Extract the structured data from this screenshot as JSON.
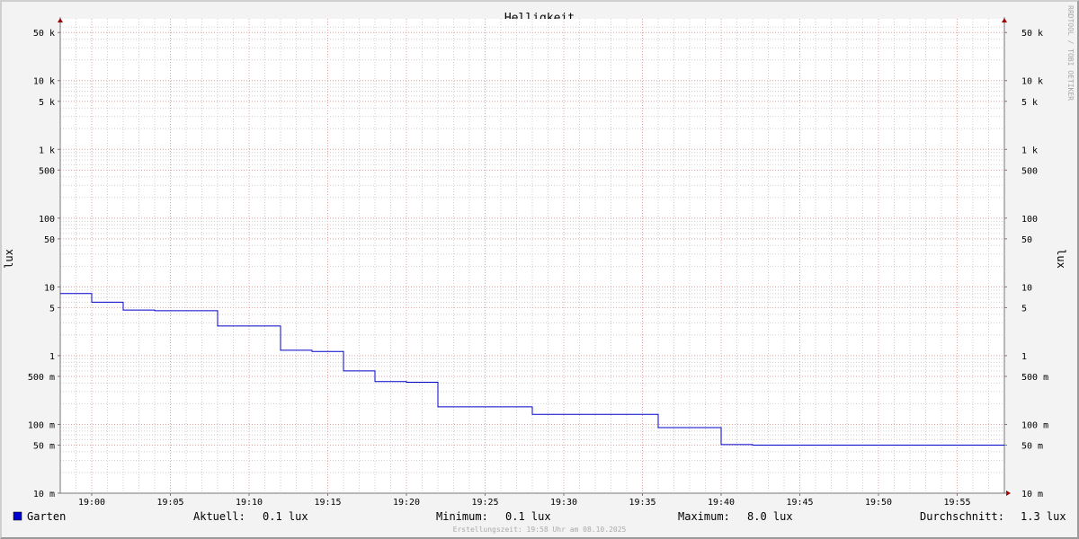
{
  "chart_data": {
    "type": "line",
    "title": "Helligkeit",
    "ylabel": "lux",
    "y_scale": "log",
    "ylim": [
      0.01,
      66000
    ],
    "xlim": [
      "18:58",
      "19:58"
    ],
    "grid": true,
    "x_ticks": [
      "19:00",
      "19:05",
      "19:10",
      "19:15",
      "19:20",
      "19:25",
      "19:30",
      "19:35",
      "19:40",
      "19:45",
      "19:50",
      "19:55"
    ],
    "y_ticks": [
      {
        "value": 0.01,
        "label": "10 m"
      },
      {
        "value": 0.05,
        "label": "50 m"
      },
      {
        "value": 0.1,
        "label": "100 m"
      },
      {
        "value": 0.5,
        "label": "500 m"
      },
      {
        "value": 1,
        "label": "1"
      },
      {
        "value": 5,
        "label": "5"
      },
      {
        "value": 10,
        "label": "10"
      },
      {
        "value": 50,
        "label": "50"
      },
      {
        "value": 100,
        "label": "100"
      },
      {
        "value": 500,
        "label": "500"
      },
      {
        "value": 1000,
        "label": "1 k"
      },
      {
        "value": 5000,
        "label": "5 k"
      },
      {
        "value": 10000,
        "label": "10 k"
      },
      {
        "value": 50000,
        "label": "50 k"
      }
    ],
    "series": [
      {
        "name": "Garten",
        "color": "#0000CC",
        "step": true,
        "x": [
          "18:58",
          "19:00",
          "19:02",
          "19:04",
          "19:08",
          "19:12",
          "19:14",
          "19:16",
          "19:18",
          "19:20",
          "19:22",
          "19:28",
          "19:36",
          "19:40",
          "19:42",
          "19:58"
        ],
        "values": [
          8.0,
          6.0,
          4.6,
          4.5,
          2.7,
          1.2,
          1.15,
          0.6,
          0.42,
          0.41,
          0.18,
          0.14,
          0.09,
          0.051,
          0.05,
          0.05
        ]
      }
    ],
    "legend": {
      "position": "bottom",
      "name": "Garten",
      "stats": [
        {
          "label": "Aktuell:",
          "value": "0.1 lux"
        },
        {
          "label": "Minimum:",
          "value": "0.1 lux"
        },
        {
          "label": "Maximum:",
          "value": "8.0 lux"
        },
        {
          "label": "Durchschnitt:",
          "value": "1.3 lux"
        }
      ]
    },
    "footer": "Erstellungszeit: 19:58 Uhr am 08.10.2025",
    "watermark": "RRDTOOL / TOBI OETIKER"
  }
}
